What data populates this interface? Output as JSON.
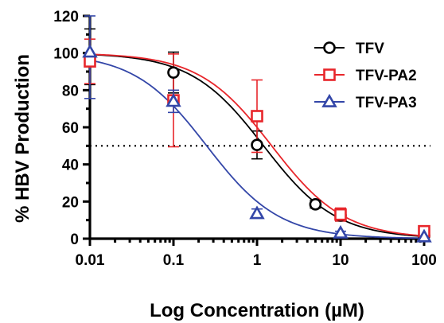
{
  "chart_data": {
    "type": "line",
    "xlabel": "Log Concentration (µM)",
    "ylabel": "% HBV Production",
    "xscale": "log",
    "xlim": [
      0.01,
      100
    ],
    "ylim": [
      0,
      120
    ],
    "xticks": [
      0.01,
      0.1,
      1,
      10,
      100
    ],
    "xtick_labels": [
      "0.01",
      "0.1",
      "1",
      "10",
      "100"
    ],
    "yticks": [
      0,
      20,
      40,
      60,
      80,
      100,
      120
    ],
    "ytick_labels": [
      "0",
      "20",
      "40",
      "60",
      "80",
      "100",
      "120"
    ],
    "reference_line": {
      "y": 50,
      "style": "dotted"
    },
    "legend_position": "top-right",
    "series": [
      {
        "name": "TFV",
        "marker": "circle",
        "color": "#000000",
        "points": [
          {
            "x": 0.01,
            "y": 98,
            "err": 15
          },
          {
            "x": 0.1,
            "y": 89.5,
            "err": 11
          },
          {
            "x": 1,
            "y": 50.5,
            "err": 7.5
          },
          {
            "x": 5,
            "y": 18.5,
            "err": 2
          },
          {
            "x": 10,
            "y": 12.5,
            "err": 3
          },
          {
            "x": 100,
            "y": 1.5,
            "err": 1.5
          }
        ],
        "fit": {
          "top": 100,
          "bottom": 0,
          "ic50": 1.2,
          "hill": 1.0
        }
      },
      {
        "name": "TFV-PA2",
        "marker": "square",
        "color": "#e8262b",
        "points": [
          {
            "x": 0.01,
            "y": 95.5,
            "err": 12
          },
          {
            "x": 0.1,
            "y": 74.5,
            "err": 25
          },
          {
            "x": 1,
            "y": 66,
            "err": 19.5
          },
          {
            "x": 10,
            "y": 13,
            "err": 3.5
          },
          {
            "x": 100,
            "y": 4,
            "err": 2
          }
        ],
        "fit": {
          "top": 100,
          "bottom": 0,
          "ic50": 1.5,
          "hill": 1.0
        }
      },
      {
        "name": "TFV-PA3",
        "marker": "triangle",
        "color": "#3346a8",
        "points": [
          {
            "x": 0.01,
            "y": 100.5,
            "err": 25
          },
          {
            "x": 0.1,
            "y": 74,
            "err": 6
          },
          {
            "x": 1,
            "y": 13.5,
            "err": 2.5
          },
          {
            "x": 10,
            "y": 3,
            "err": 1
          },
          {
            "x": 100,
            "y": 1,
            "err": 1
          }
        ],
        "fit": {
          "top": 100,
          "bottom": 0,
          "ic50": 0.25,
          "hill": 1.0
        }
      }
    ]
  }
}
